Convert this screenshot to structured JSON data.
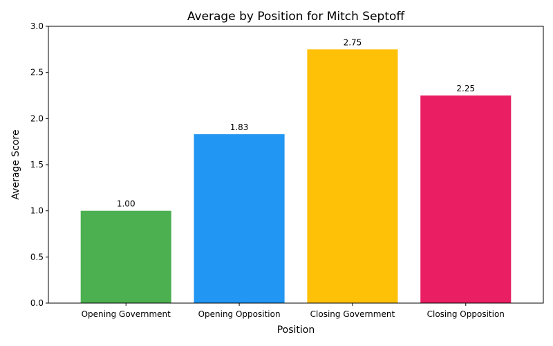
{
  "chart_data": {
    "type": "bar",
    "title": "Average by Position for Mitch Septoff",
    "xlabel": "Position",
    "ylabel": "Average Score",
    "categories": [
      "Opening Government",
      "Opening Opposition",
      "Closing Government",
      "Closing Opposition"
    ],
    "values": [
      1.0,
      1.83,
      2.75,
      2.25
    ],
    "value_labels": [
      "1.00",
      "1.83",
      "2.75",
      "2.25"
    ],
    "colors": [
      "#4caf50",
      "#2196f3",
      "#ffc107",
      "#e91e63"
    ],
    "ylim": [
      0,
      3
    ],
    "yticks": [
      0.0,
      0.5,
      1.0,
      1.5,
      2.0,
      2.5,
      3.0
    ],
    "ytick_labels": [
      "0.0",
      "0.5",
      "1.0",
      "1.5",
      "2.0",
      "2.5",
      "3.0"
    ],
    "grid": false,
    "legend": "none"
  }
}
